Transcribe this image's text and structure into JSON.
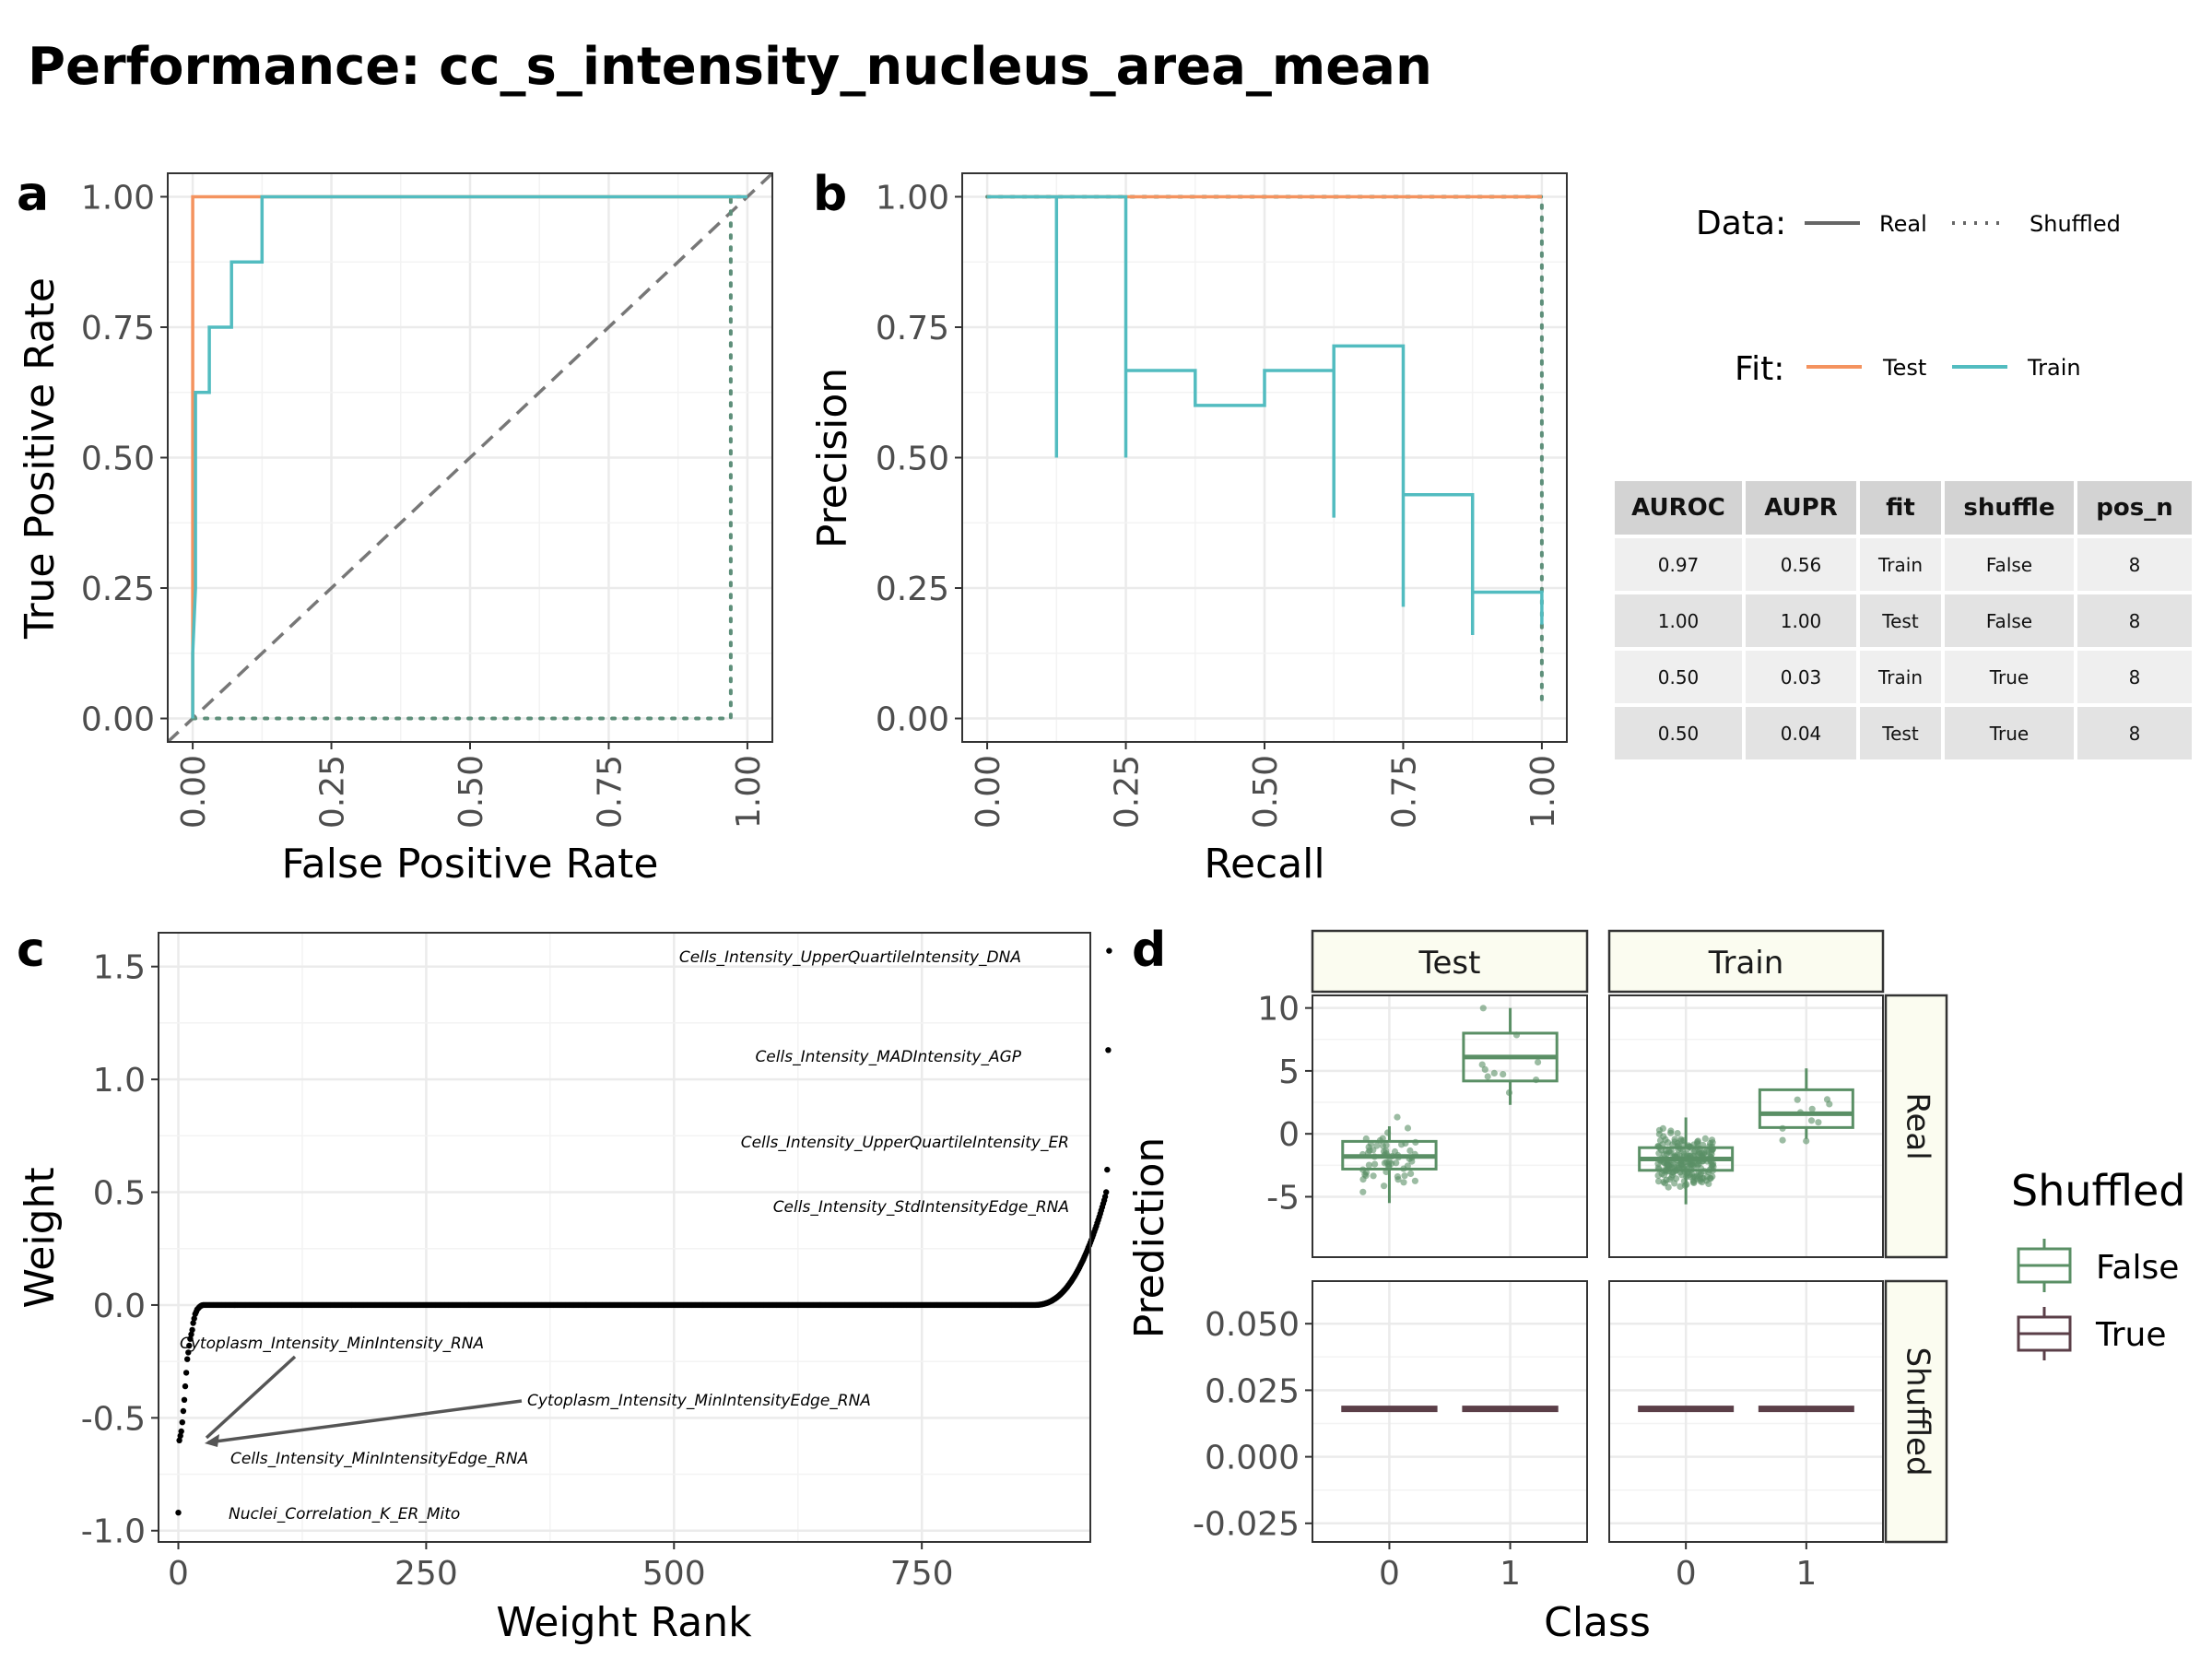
{
  "page": {
    "title": "Performance: cc_s_intensity_nucleus_area_mean"
  },
  "legend": {
    "data_title": "Data:",
    "data_real": "Real",
    "data_shuffled": "Shuffled",
    "fit_title": "Fit:",
    "fit_test": "Test",
    "fit_train": "Train",
    "shuffled_title": "Shuffled",
    "shuffled_false": "False",
    "shuffled_true": "True"
  },
  "table": {
    "headers": [
      "AUROC",
      "AUPR",
      "fit",
      "shuffle",
      "pos_n"
    ],
    "rows": [
      [
        "0.97",
        "0.56",
        "Train",
        "False",
        "8"
      ],
      [
        "1.00",
        "1.00",
        "Test",
        "False",
        "8"
      ],
      [
        "0.50",
        "0.03",
        "Train",
        "True",
        "8"
      ],
      [
        "0.50",
        "0.04",
        "Test",
        "True",
        "8"
      ]
    ]
  },
  "colors": {
    "test": "#f4935f",
    "train": "#52bcc0",
    "shuffled_line": "#5e8f7a",
    "box_false": "#5a8f65",
    "box_true": "#5b3f48"
  },
  "chart_data": [
    {
      "panel": "a",
      "type": "line",
      "xlabel": "False Positive Rate",
      "ylabel": "True Positive Rate",
      "xlim": [
        0,
        1
      ],
      "ylim": [
        0,
        1
      ],
      "xticks": [
        "0.00",
        "0.25",
        "0.50",
        "0.75",
        "1.00"
      ],
      "yticks": [
        "0.00",
        "0.25",
        "0.50",
        "0.75",
        "1.00"
      ],
      "series": [
        {
          "name": "Test",
          "fit": "Test",
          "data": "Real",
          "x": [
            0,
            0,
            0.12,
            1
          ],
          "y": [
            0,
            1,
            1,
            1
          ]
        },
        {
          "name": "Train",
          "fit": "Train",
          "data": "Real",
          "x": [
            0,
            0,
            0.005,
            0.005,
            0.03,
            0.03,
            0.07,
            0.07,
            0.125,
            0.125,
            1
          ],
          "y": [
            0,
            0.125,
            0.25,
            0.625,
            0.625,
            0.75,
            0.75,
            0.875,
            0.875,
            1,
            1
          ]
        },
        {
          "name": "Shuffled",
          "data": "Shuffled",
          "x": [
            0,
            0.97,
            0.97,
            1
          ],
          "y": [
            0,
            0,
            1,
            1
          ]
        }
      ]
    },
    {
      "panel": "b",
      "type": "line",
      "xlabel": "Recall",
      "ylabel": "Precision",
      "xlim": [
        0,
        1
      ],
      "ylim": [
        0,
        1
      ],
      "xticks": [
        "0.00",
        "0.25",
        "0.50",
        "0.75",
        "1.00"
      ],
      "yticks": [
        "0.00",
        "0.25",
        "0.50",
        "0.75",
        "1.00"
      ],
      "series": [
        {
          "name": "Test",
          "fit": "Test",
          "data": "Real",
          "x": [
            0,
            1
          ],
          "y": [
            1,
            1
          ]
        },
        {
          "name": "Train",
          "fit": "Train",
          "data": "Real",
          "x": [
            0,
            0.125,
            0.125,
            0.125,
            0.25,
            0.25,
            0.25,
            0.375,
            0.375,
            0.5,
            0.5,
            0.625,
            0.625,
            0.625,
            0.75,
            0.75,
            0.75,
            0.875,
            0.875,
            0.875,
            1,
            1
          ],
          "y": [
            1,
            1,
            0.5,
            1,
            1,
            0.5,
            0.667,
            0.667,
            0.6,
            0.6,
            0.667,
            0.667,
            0.385,
            0.714,
            0.714,
            0.214,
            0.429,
            0.429,
            0.16,
            0.242,
            0.242,
            0.18
          ]
        },
        {
          "name": "Shuffled",
          "data": "Shuffled",
          "x": [
            0,
            1,
            1
          ],
          "y": [
            1,
            1,
            0.03
          ]
        }
      ]
    },
    {
      "panel": "c",
      "type": "scatter",
      "xlabel": "Weight Rank",
      "ylabel": "Weight",
      "xlim": [
        -20,
        920
      ],
      "ylim": [
        -1.05,
        1.65
      ],
      "xticks": [
        "0",
        "250",
        "500",
        "750"
      ],
      "xtick_values": [
        0,
        250,
        500,
        750
      ],
      "yticks": [
        "-1.0",
        "-0.5",
        "0.0",
        "0.5",
        "1.0",
        "1.5"
      ],
      "ytick_values": [
        -1,
        -0.5,
        0,
        0.5,
        1,
        1.5
      ],
      "n_points": 940,
      "annotations": [
        {
          "text": "Cells_Intensity_UpperQuartileIntensity_DNA",
          "x": 939,
          "y": 1.57
        },
        {
          "text": "Cells_Intensity_MADIntensity_AGP",
          "x": 938,
          "y": 1.13
        },
        {
          "text": "Cells_Intensity_UpperQuartileIntensity_ER",
          "x": 937,
          "y": 0.6
        },
        {
          "text": "Cells_Intensity_StdIntensityEdge_RNA",
          "x": 936,
          "y": 0.5
        },
        {
          "text": "Cytoplasm_Intensity_MinIntensity_RNA",
          "x": 3,
          "y": -0.6
        },
        {
          "text": "Cytoplasm_Intensity_MinIntensityEdge_RNA",
          "x": 2,
          "y": -0.58
        },
        {
          "text": "Cells_Intensity_MinIntensityEdge_RNA",
          "x": 1,
          "y": -0.56
        },
        {
          "text": "Nuclei_Correlation_K_ER_Mito",
          "x": 0,
          "y": -0.92
        }
      ]
    },
    {
      "panel": "d",
      "type": "box",
      "xlabel": "Class",
      "ylabel": "Prediction",
      "categories": [
        "0",
        "1"
      ],
      "facets_cols": [
        "Test",
        "Train"
      ],
      "facets_rows": [
        "Real",
        "Shuffled"
      ],
      "real_yticks": [
        "10",
        "5",
        "0",
        "-5"
      ],
      "real_ytick_values": [
        10,
        5,
        0,
        -5
      ],
      "real_ylim": [
        -9.8,
        11
      ],
      "shuffled_yticks": [
        "0.050",
        "0.025",
        "0.000",
        "-0.025"
      ],
      "shuffled_ytick_values": [
        0.05,
        0.025,
        0,
        -0.025
      ],
      "shuffled_ylim": [
        -0.032,
        0.066
      ],
      "boxes": {
        "Real": {
          "Test": [
            {
              "class": "0",
              "q1": -2.8,
              "median": -1.8,
              "q3": -0.6,
              "min": -5.5,
              "max": 0.6
            },
            {
              "class": "1",
              "q1": 4.2,
              "median": 6.1,
              "q3": 8.0,
              "min": 2.3,
              "max": 10.0
            }
          ],
          "Train": [
            {
              "class": "0",
              "q1": -2.9,
              "median": -2.0,
              "q3": -1.1,
              "min": -5.6,
              "max": 1.3
            },
            {
              "class": "1",
              "q1": 0.5,
              "median": 1.6,
              "q3": 3.5,
              "min": -0.4,
              "max": 5.2
            }
          ]
        },
        "Shuffled": {
          "Test": [
            {
              "class": "0",
              "q1": 0.018,
              "median": 0.018,
              "q3": 0.018,
              "min": 0.018,
              "max": 0.018
            },
            {
              "class": "1",
              "q1": 0.018,
              "median": 0.018,
              "q3": 0.018,
              "min": 0.018,
              "max": 0.018
            }
          ],
          "Train": [
            {
              "class": "0",
              "q1": 0.018,
              "median": 0.018,
              "q3": 0.018,
              "min": 0.018,
              "max": 0.018
            },
            {
              "class": "1",
              "q1": 0.018,
              "median": 0.018,
              "q3": 0.018,
              "min": 0.018,
              "max": 0.018
            }
          ]
        }
      }
    }
  ]
}
